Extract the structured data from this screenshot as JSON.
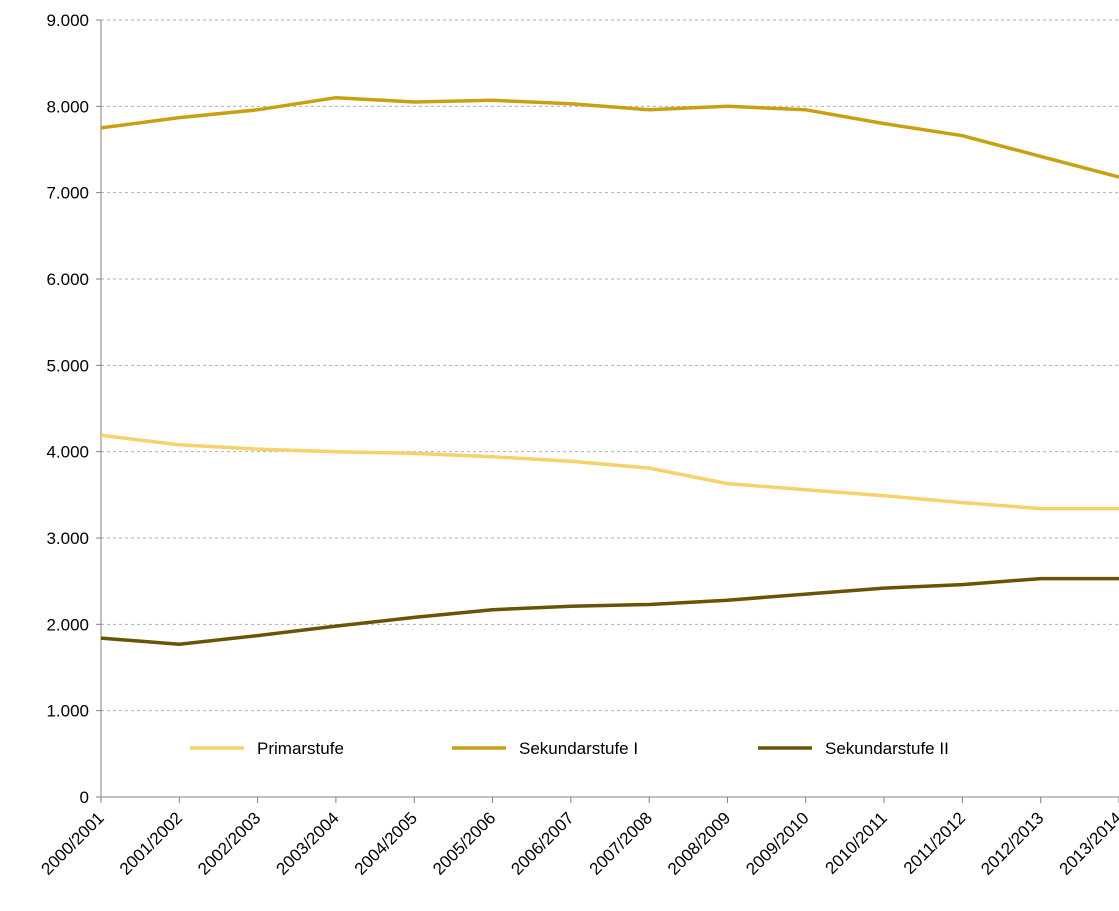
{
  "chart_data": {
    "type": "line",
    "categories": [
      "2000/2001",
      "2001/2002",
      "2002/2003",
      "2003/2004",
      "2004/2005",
      "2005/2006",
      "2006/2007",
      "2007/2008",
      "2008/2009",
      "2009/2010",
      "2010/2011",
      "2011/2012",
      "2012/2013",
      "2013/2014"
    ],
    "series": [
      {
        "name": "Primarstufe",
        "color": "#F5D36A",
        "values": [
          4190,
          4080,
          4030,
          4000,
          3980,
          3940,
          3890,
          3810,
          3630,
          3560,
          3490,
          3410,
          3340,
          3340
        ]
      },
      {
        "name": "Sekundarstufe I",
        "color": "#C8A012",
        "values": [
          7750,
          7870,
          7960,
          8100,
          8050,
          8070,
          8030,
          7960,
          8000,
          7960,
          7800,
          7660,
          7420,
          7180
        ]
      },
      {
        "name": "Sekundarstufe II",
        "color": "#6B5305",
        "values": [
          1840,
          1770,
          1870,
          1980,
          2080,
          2170,
          2210,
          2230,
          2280,
          2350,
          2420,
          2460,
          2530,
          2530
        ]
      }
    ],
    "yticks": [
      "0",
      "1.000",
      "2.000",
      "3.000",
      "4.000",
      "5.000",
      "6.000",
      "7.000",
      "8.000",
      "9.000"
    ],
    "ylim": [
      0,
      9000
    ],
    "grid": true,
    "legend_position": "bottom-inside"
  }
}
